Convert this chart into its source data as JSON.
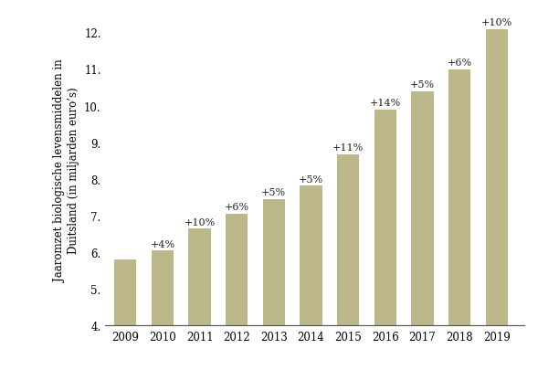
{
  "years": [
    2009,
    2010,
    2011,
    2012,
    2013,
    2014,
    2015,
    2016,
    2017,
    2018,
    2019
  ],
  "values": [
    5.8,
    6.04,
    6.64,
    7.04,
    7.44,
    7.81,
    8.67,
    9.89,
    10.38,
    10.99,
    12.09
  ],
  "labels": [
    "",
    "+4%",
    "+10%",
    "+6%",
    "+5%",
    "+5%",
    "+11%",
    "+14%",
    "+5%",
    "+6%",
    "+10%"
  ],
  "bar_color": "#bdb88a",
  "ylabel": "Jaaromzet biologische levensmiddelen in\nDuitsland (in miljarden euro’s)",
  "ylim_min": 4.0,
  "ylim_max": 12.5,
  "yticks": [
    4.0,
    5.0,
    6.0,
    7.0,
    8.0,
    9.0,
    10.0,
    11.0,
    12.0
  ],
  "background_color": "#ffffff",
  "label_fontsize": 8.0,
  "ylabel_fontsize": 8.5,
  "tick_fontsize": 8.5,
  "bar_width": 0.6
}
